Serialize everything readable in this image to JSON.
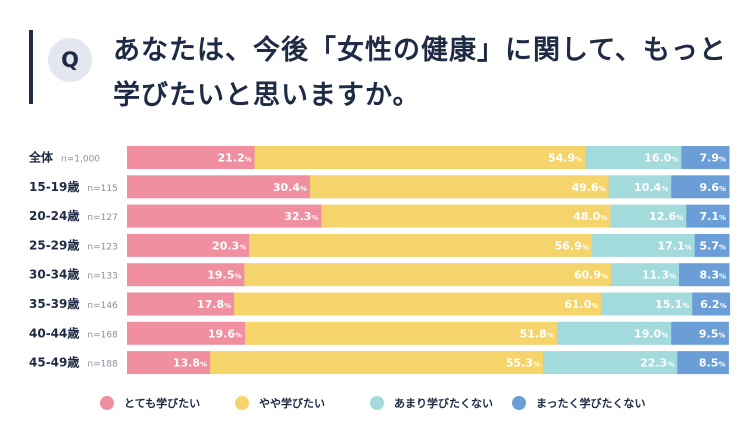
{
  "header": {
    "q_badge": "Q",
    "question_line1": "あなたは、今後「女性の健康」に関して、もっと",
    "question_line2": "学びたいと思いますか。"
  },
  "chart_data": {
    "type": "bar",
    "orientation": "horizontal",
    "stacked": true,
    "percent_scale": true,
    "categories": [
      "全体",
      "15-19歳",
      "20-24歳",
      "25-29歳",
      "30-34歳",
      "35-39歳",
      "40-44歳",
      "45-49歳"
    ],
    "sample_sizes": [
      "n=1,000",
      "n=115",
      "n=127",
      "n=123",
      "n=133",
      "n=146",
      "n=168",
      "n=188"
    ],
    "unit": "%",
    "series": [
      {
        "name": "とても学びたい",
        "color": "#ef8fa0",
        "label_color": "#ffffff",
        "values": [
          21.2,
          30.4,
          32.3,
          20.3,
          19.5,
          17.8,
          19.6,
          13.8
        ]
      },
      {
        "name": "やや学びたい",
        "color": "#f5d46b",
        "label_color": "#ffffff",
        "values": [
          54.9,
          49.6,
          48.0,
          56.9,
          60.9,
          61.0,
          51.8,
          55.3
        ]
      },
      {
        "name": "あまり学びたくない",
        "color": "#a3dbdd",
        "label_color": "#ffffff",
        "values": [
          16.0,
          10.4,
          12.6,
          17.1,
          11.3,
          15.1,
          19.0,
          22.3
        ]
      },
      {
        "name": "まったく学びたくない",
        "color": "#6b9ed6",
        "label_color": "#ffffff",
        "values": [
          7.9,
          9.6,
          7.1,
          5.7,
          8.3,
          6.2,
          9.5,
          8.5
        ]
      }
    ],
    "legend": "bottom",
    "grid": false
  }
}
